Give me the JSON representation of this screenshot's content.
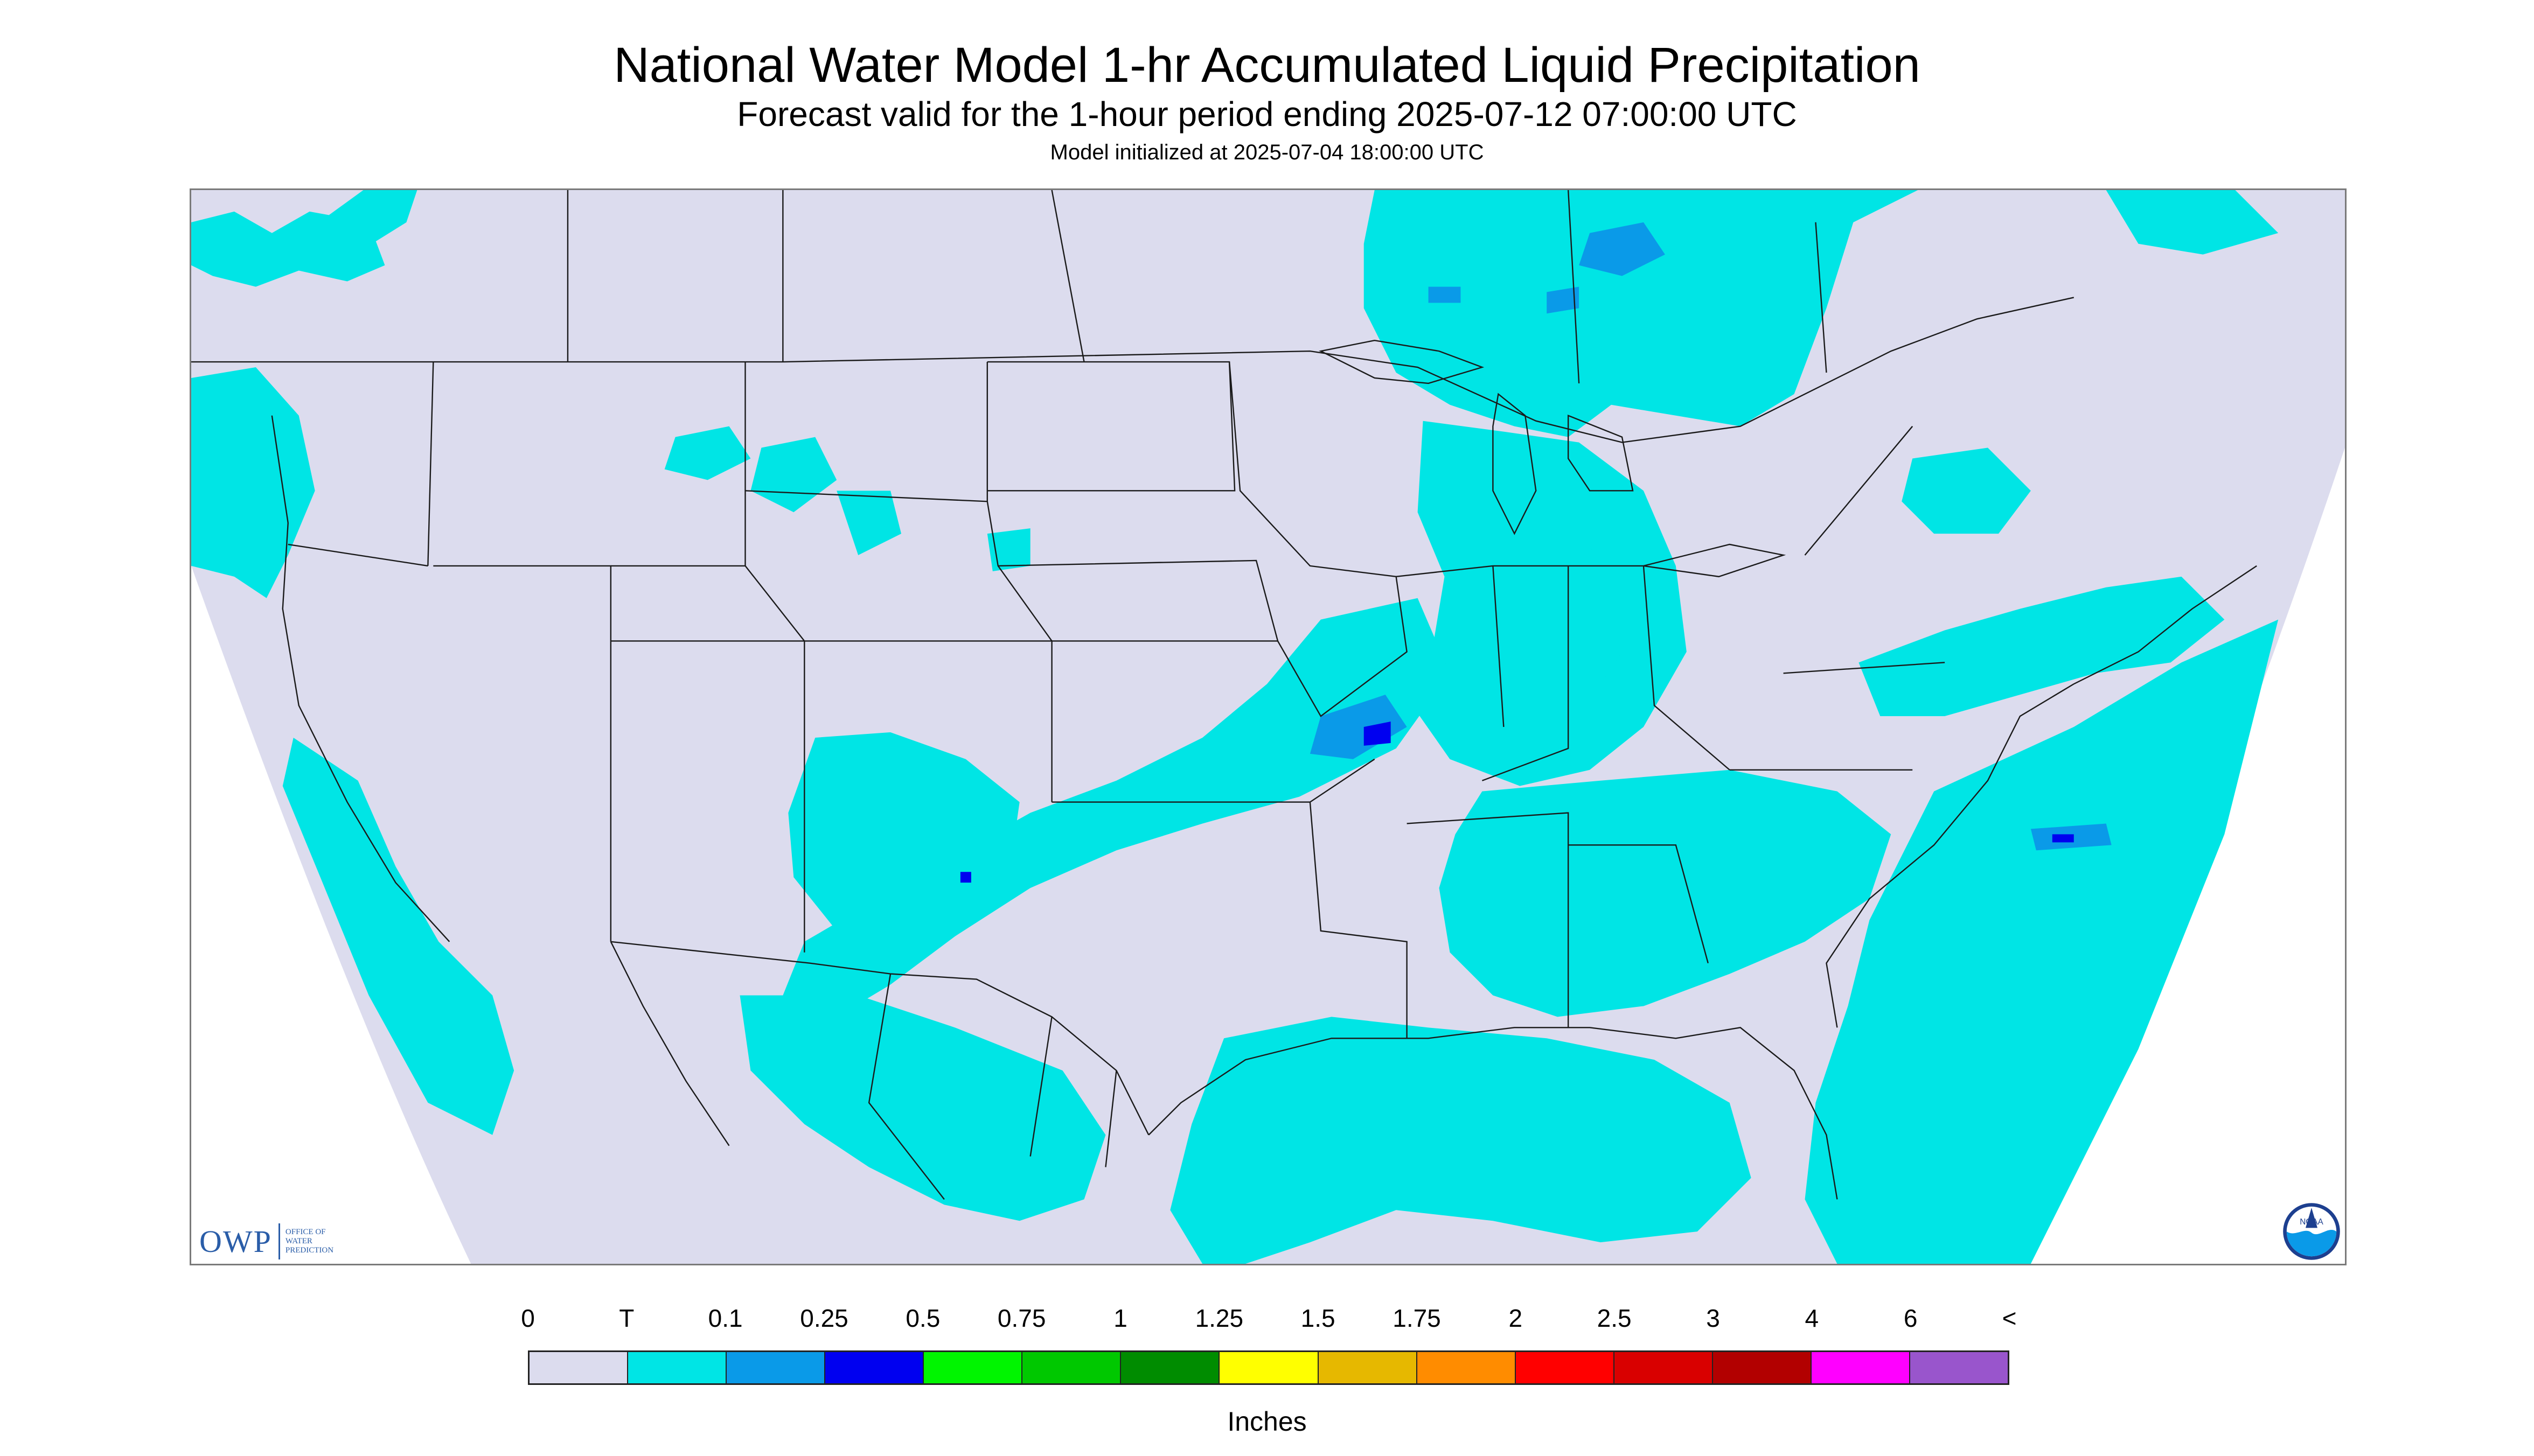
{
  "header": {
    "title": "National Water Model 1-hr Accumulated Liquid Precipitation",
    "subtitle": "Forecast valid for the 1-hour period ending 2025-07-12 07:00:00 UTC",
    "init": "Model initialized at 2025-07-04 18:00:00 UTC"
  },
  "map": {
    "projection": "lambert-conformal-conus",
    "background_color": "#dcdcee",
    "boundary_color": "#1a1a1a",
    "outside_domain_color": "#ffffff"
  },
  "logos": {
    "owp_mark": "OWP",
    "owp_line1": "Office of",
    "owp_line2": "Water",
    "owp_line3": "Prediction",
    "noaa_text": "NOAA"
  },
  "legend": {
    "labels": [
      "0",
      "T",
      "0.1",
      "0.25",
      "0.5",
      "0.75",
      "1",
      "1.25",
      "1.5",
      "1.75",
      "2",
      "2.5",
      "3",
      "4",
      "6",
      "<"
    ],
    "colors": [
      "#dcdcee",
      "#00e5e5",
      "#0a9ae8",
      "#0000f0",
      "#00f500",
      "#00c800",
      "#008c00",
      "#ffff00",
      "#e6b800",
      "#ff8c00",
      "#ff0000",
      "#d90000",
      "#b20000",
      "#ff00ff",
      "#9955cc"
    ],
    "unit": "Inches"
  }
}
